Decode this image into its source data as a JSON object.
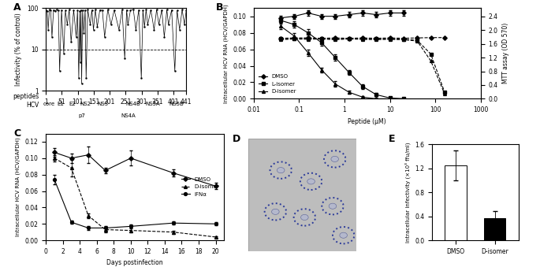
{
  "chart_data": [
    {
      "type": "line",
      "label": "A",
      "y_label": "Infectivity (% of control)",
      "x_label": "peptides",
      "genome_label": "HCV",
      "log": "y",
      "color": "#000000",
      "marker": "dot",
      "line_style": "solid",
      "threshold": 10,
      "xlim": [
        1,
        441
      ],
      "xticks": [
        1,
        51,
        101,
        151,
        201,
        251,
        301,
        351,
        401,
        441
      ],
      "ylim": [
        1,
        100
      ],
      "yticks": [
        1,
        10,
        100
      ],
      "x": [
        1,
        5,
        8,
        12,
        16,
        20,
        25,
        30,
        35,
        40,
        44,
        50,
        57,
        62,
        68,
        74,
        80,
        88,
        96,
        100,
        104,
        107,
        109,
        111,
        113,
        116,
        120,
        124,
        127,
        132,
        140,
        145,
        150,
        156,
        162,
        170,
        178,
        185,
        195,
        205,
        215,
        230,
        240,
        248,
        254,
        258,
        266,
        275,
        283,
        292,
        300,
        305,
        310,
        315,
        320,
        330,
        340,
        348,
        355,
        364,
        372,
        380,
        385,
        395,
        405,
        412,
        420,
        428,
        435,
        441
      ],
      "values": [
        90,
        85,
        30,
        92,
        88,
        20,
        90,
        86,
        92,
        88,
        3,
        90,
        8,
        87,
        40,
        92,
        15,
        90,
        20,
        88,
        2,
        85,
        5,
        90,
        1.5,
        88,
        25,
        90,
        2,
        92,
        40,
        90,
        30,
        92,
        35,
        90,
        88,
        20,
        92,
        40,
        90,
        30,
        92,
        6,
        90,
        40,
        88,
        92,
        30,
        90,
        2,
        88,
        35,
        92,
        40,
        90,
        30,
        92,
        40,
        90,
        20,
        92,
        40,
        90,
        3,
        88,
        30,
        92,
        40,
        90
      ],
      "genes": [
        {
          "name": "core",
          "peptide": 12
        },
        {
          "name": "E1",
          "peptide": 48
        },
        {
          "name": "E2",
          "peptide": 85
        },
        {
          "name": "p7",
          "peptide": 113
        },
        {
          "name": "NS2",
          "peptide": 125
        },
        {
          "name": "NS3",
          "peptide": 180
        },
        {
          "name": "NS4A",
          "peptide": 258
        },
        {
          "name": "NS4B",
          "peptide": 275
        },
        {
          "name": "NS5A",
          "peptide": 335
        },
        {
          "name": "NS5B",
          "peptide": 410
        }
      ]
    },
    {
      "type": "line",
      "label": "B",
      "x_label": "Peptide (µM)",
      "y_label": "Intracellular HCV RNA (HCV/GAPDH)",
      "y2_label": "MTT assay (OD 570)",
      "log": "x",
      "legend": "lower left",
      "xlim": [
        0.01,
        1000
      ],
      "xticks": [
        0.01,
        0.1,
        1,
        10,
        100,
        1000
      ],
      "ylim": [
        0,
        0.11
      ],
      "yticks": [
        {
          "value": 0,
          "label": "0.00"
        },
        {
          "value": 0.02,
          "label": "0.02"
        },
        {
          "value": 0.04,
          "label": "0.04"
        },
        {
          "value": 0.06,
          "label": "0.06"
        },
        {
          "value": 0.08,
          "label": "0.08"
        },
        {
          "value": 0.1,
          "label": "0.10"
        }
      ],
      "y2lim": [
        0,
        2.64
      ],
      "y2ticks": [
        {
          "value": 0,
          "label": "0.0"
        },
        {
          "value": 0.4,
          "label": "0.4"
        },
        {
          "value": 0.8,
          "label": "0.8"
        },
        {
          "value": 1.2,
          "label": "1.2"
        },
        {
          "value": 1.6,
          "label": "1.6"
        },
        {
          "value": 2.0,
          "label": "2.0"
        },
        {
          "value": 2.4,
          "label": "2.4"
        }
      ],
      "series": [
        {
          "name": "DMSO",
          "marker": "diamond",
          "line_style": "solid",
          "color": "#000000",
          "x": [
            0.039,
            0.078,
            0.156,
            0.3125,
            0.625,
            1.25,
            2.5,
            5,
            10,
            20
          ],
          "values": [
            0.098,
            0.1,
            0.104,
            0.1,
            0.1,
            0.102,
            0.104,
            0.102,
            0.104,
            0.104
          ],
          "errors": [
            0.003,
            0.003,
            0.003,
            0.003,
            0.003,
            0.003,
            0.003,
            0.003,
            0.003,
            0.003
          ]
        },
        {
          "name": "L-isomer",
          "marker": "square",
          "line_style": "solid",
          "color": "#000000",
          "x": [
            0.039,
            0.078,
            0.156,
            0.3125,
            0.625,
            1.25,
            2.5,
            5,
            10,
            20
          ],
          "values": [
            0.095,
            0.09,
            0.08,
            0.068,
            0.05,
            0.032,
            0.015,
            0.005,
            0.001,
            0.0
          ],
          "errors": [
            0.004,
            0.004,
            0.004,
            0.004,
            0.004,
            0.003,
            0.003,
            0.002,
            0.001,
            0.001
          ]
        },
        {
          "name": "D-isomer",
          "marker": "triangle",
          "line_style": "solid",
          "color": "#000000",
          "x": [
            0.039,
            0.078,
            0.156,
            0.3125,
            0.625,
            1.25,
            2.5,
            5,
            10,
            20
          ],
          "values": [
            0.088,
            0.076,
            0.056,
            0.035,
            0.018,
            0.008,
            0.002,
            0.0,
            0.0,
            0.0
          ],
          "errors": [
            0.004,
            0.004,
            0.004,
            0.003,
            0.003,
            0.002,
            0.001,
            0.001,
            0.001,
            0.001
          ]
        },
        {
          "name": "DMSO",
          "marker": "diamond",
          "line_style": "dashed",
          "color": "#000000",
          "axis": "y2",
          "x": [
            0.039,
            0.078,
            0.156,
            0.3125,
            0.625,
            1.25,
            2.5,
            5,
            10,
            20,
            40,
            80,
            160
          ],
          "values": [
            1.76,
            1.77,
            1.77,
            1.76,
            1.77,
            1.76,
            1.77,
            1.76,
            1.77,
            1.76,
            1.77,
            1.78,
            1.78
          ]
        },
        {
          "name": "L-isomer",
          "marker": "square",
          "line_style": "dashed",
          "color": "#000000",
          "axis": "y2",
          "x": [
            0.039,
            0.078,
            0.156,
            0.3125,
            0.625,
            1.25,
            2.5,
            5,
            10,
            20,
            40,
            80,
            160
          ],
          "values": [
            1.74,
            1.75,
            1.76,
            1.75,
            1.74,
            1.75,
            1.74,
            1.75,
            1.74,
            1.73,
            1.7,
            1.3,
            0.2
          ]
        },
        {
          "name": "D-isomer",
          "marker": "triangle",
          "line_style": "dashed",
          "color": "#000000",
          "axis": "y2",
          "x": [
            0.039,
            0.078,
            0.156,
            0.3125,
            0.625,
            1.25,
            2.5,
            5,
            10,
            20,
            40,
            80,
            160
          ],
          "values": [
            1.72,
            1.74,
            1.73,
            1.74,
            1.72,
            1.74,
            1.73,
            1.72,
            1.73,
            1.72,
            1.68,
            1.1,
            0.15
          ]
        }
      ]
    },
    {
      "type": "line",
      "label": "C",
      "x_label": "Days postinfection",
      "y_label": "Intracellular HCV RNA (HCV/GAPDH)",
      "legend": "center right",
      "xlim": [
        0,
        21
      ],
      "xticks": [
        0,
        2,
        4,
        6,
        8,
        10,
        12,
        14,
        16,
        18,
        20
      ],
      "ylim": [
        0,
        0.13
      ],
      "yticks": [
        {
          "value": 0,
          "label": "0.00"
        },
        {
          "value": 0.02,
          "label": "0.02"
        },
        {
          "value": 0.04,
          "label": "0.04"
        },
        {
          "value": 0.06,
          "label": "0.06"
        },
        {
          "value": 0.08,
          "label": "0.08"
        },
        {
          "value": 0.1,
          "label": "0.10"
        },
        {
          "value": 0.12,
          "label": "0.12"
        }
      ],
      "series": [
        {
          "name": "DMSO",
          "marker": "diamond",
          "line_style": "solid",
          "color": "#000000",
          "x": [
            1,
            3,
            5,
            7,
            10,
            15,
            20
          ],
          "values": [
            0.107,
            0.1,
            0.104,
            0.085,
            0.1,
            0.082,
            0.066
          ],
          "errors": [
            0.005,
            0.006,
            0.01,
            0.003,
            0.009,
            0.004,
            0.004
          ]
        },
        {
          "name": "D-isomer",
          "marker": "triangle",
          "line_style": "dashed",
          "color": "#000000",
          "x": [
            1,
            3,
            5,
            7,
            10,
            15,
            20
          ],
          "values": [
            0.1,
            0.088,
            0.03,
            0.013,
            0.012,
            0.01,
            0.004
          ],
          "errors": [
            0.004,
            0.01,
            0.003,
            0.003,
            0.002,
            0.002,
            0.001
          ]
        },
        {
          "name": "IFNα",
          "marker": "circle",
          "line_style": "solid",
          "color": "#000000",
          "x": [
            1,
            3,
            5,
            7,
            10,
            15,
            20
          ],
          "values": [
            0.074,
            0.022,
            0.015,
            0.015,
            0.017,
            0.021,
            0.02
          ],
          "errors": [
            0.006,
            0.002,
            0.002,
            0.002,
            0.002,
            0.002,
            0.002
          ]
        }
      ]
    },
    {
      "type": "image",
      "label": "D"
    },
    {
      "type": "bar",
      "label": "E",
      "y_label": "Intracellular infectivity (×10³ ffu/ml)",
      "categories": [
        "DMSO",
        "D-isomer"
      ],
      "values": [
        1.25,
        0.37
      ],
      "errors": [
        0.25,
        0.12
      ],
      "colors": [
        "#ffffff",
        "#000000"
      ],
      "ylim": [
        0,
        1.6
      ],
      "yticks": [
        {
          "value": 0,
          "label": "0.0"
        },
        {
          "value": 0.4,
          "label": "0.4"
        },
        {
          "value": 0.8,
          "label": "0.8"
        },
        {
          "value": 1.2,
          "label": "1.2"
        },
        {
          "value": 1.6,
          "label": "1.6"
        }
      ]
    }
  ]
}
